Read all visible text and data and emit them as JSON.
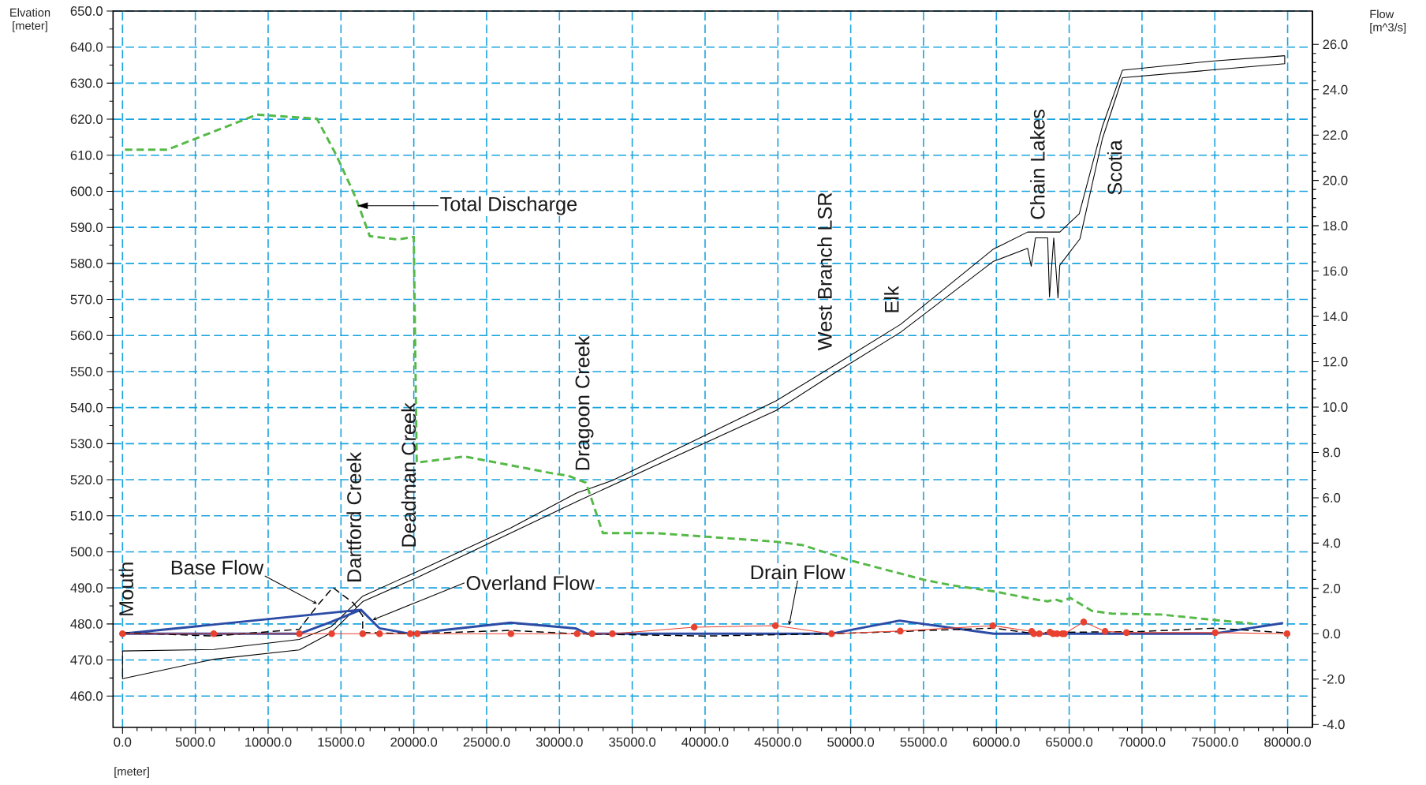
{
  "chart_data": {
    "type": "line",
    "xlabel": "[meter]",
    "ylabel": "Elvation [meter]",
    "y2label": "Flow [m^3/s]",
    "xlim": [
      -650,
      81700
    ],
    "ylim": [
      451.3,
      650
    ],
    "y2lim": [
      -4.13,
      27.47
    ],
    "grid": true,
    "xticks": [
      {
        "value": 0,
        "label": "0.0"
      },
      {
        "value": 5000,
        "label": "5000.0"
      },
      {
        "value": 10000,
        "label": "10000.0"
      },
      {
        "value": 15000,
        "label": "15000.0"
      },
      {
        "value": 20000,
        "label": "20000.0"
      },
      {
        "value": 25000,
        "label": "25000.0"
      },
      {
        "value": 30000,
        "label": "30000.0"
      },
      {
        "value": 35000,
        "label": "35000.0"
      },
      {
        "value": 40000,
        "label": "40000.0"
      },
      {
        "value": 45000,
        "label": "45000.0"
      },
      {
        "value": 50000,
        "label": "50000.0"
      },
      {
        "value": 55000,
        "label": "55000.0"
      },
      {
        "value": 60000,
        "label": "60000.0"
      },
      {
        "value": 65000,
        "label": "65000.0"
      },
      {
        "value": 70000,
        "label": "70000.0"
      },
      {
        "value": 75000,
        "label": "75000.0"
      },
      {
        "value": 80000,
        "label": "80000.0"
      }
    ],
    "yticks": [
      {
        "value": 460,
        "label": "460.0"
      },
      {
        "value": 470,
        "label": "470.0"
      },
      {
        "value": 480,
        "label": "480.0"
      },
      {
        "value": 490,
        "label": "490.0"
      },
      {
        "value": 500,
        "label": "500.0"
      },
      {
        "value": 510,
        "label": "510.0"
      },
      {
        "value": 520,
        "label": "520.0"
      },
      {
        "value": 530,
        "label": "530.0"
      },
      {
        "value": 540,
        "label": "540.0"
      },
      {
        "value": 550,
        "label": "550.0"
      },
      {
        "value": 560,
        "label": "560.0"
      },
      {
        "value": 570,
        "label": "570.0"
      },
      {
        "value": 580,
        "label": "580.0"
      },
      {
        "value": 590,
        "label": "590.0"
      },
      {
        "value": 600,
        "label": "600.0"
      },
      {
        "value": 610,
        "label": "610.0"
      },
      {
        "value": 620,
        "label": "620.0"
      },
      {
        "value": 630,
        "label": "630.0"
      },
      {
        "value": 640,
        "label": "640.0"
      },
      {
        "value": 650,
        "label": "650.0"
      }
    ],
    "y2ticks": [
      {
        "value": -4,
        "label": "-4.0"
      },
      {
        "value": -2,
        "label": "-2.0"
      },
      {
        "value": 0,
        "label": "0.0"
      },
      {
        "value": 2,
        "label": "2.0"
      },
      {
        "value": 4,
        "label": "4.0"
      },
      {
        "value": 6,
        "label": "6.0"
      },
      {
        "value": 8,
        "label": "8.0"
      },
      {
        "value": 10,
        "label": "10.0"
      },
      {
        "value": 12,
        "label": "12.0"
      },
      {
        "value": 14,
        "label": "14.0"
      },
      {
        "value": 16,
        "label": "16.0"
      },
      {
        "value": 18,
        "label": "18.0"
      },
      {
        "value": 20,
        "label": "20.0"
      },
      {
        "value": 22,
        "label": "22.0"
      },
      {
        "value": 24,
        "label": "24.0"
      },
      {
        "value": 26,
        "label": "26.0"
      }
    ],
    "annotations": [
      "Mouth",
      "Dartford Creek",
      "Deadman Creek",
      "Dragoon Creek",
      "West Branch LSR",
      "Elk",
      "Chain Lakes",
      "Scotia",
      "Total Discharge",
      "Base Flow",
      {
        "text": "Overland Flow",
        "x": 17170,
        "y": 481.1
      },
      "Drain Flow"
    ],
    "series": [
      {
        "color": "#000000",
        "x": [
          0,
          6262,
          12140,
          14313,
          16490,
          20000,
          26647,
          31218,
          32190,
          33635,
          44880,
          48706,
          53424,
          59768,
          62147,
          64357,
          65695,
          67282,
          68659,
          74789,
          79800
        ],
        "values": [
          472.5,
          472.9,
          475.7,
          479.2,
          487.7,
          494.1,
          506.6,
          516.4,
          517.7,
          519.8,
          541.9,
          551.3,
          563.1,
          583.9,
          588.7,
          588.7,
          593.8,
          618.0,
          633.6,
          636.1,
          637.6
        ]
      },
      {
        "color": "#000000",
        "x": [
          0,
          0,
          6262,
          12140,
          14313,
          16490,
          20238,
          31218,
          44880,
          48706,
          53424,
          59768,
          62145,
          62395,
          62688,
          63522,
          63647,
          63940,
          64232,
          64357,
          65738,
          67282,
          68659,
          79800,
          79800
        ],
        "values": [
          472.5,
          464.8,
          470.2,
          472.8,
          477.5,
          486.2,
          492.9,
          514.0,
          539.2,
          549.1,
          560.9,
          580.5,
          584.2,
          579.2,
          587.1,
          587.1,
          570.7,
          587.1,
          570.4,
          579.5,
          586.8,
          614.6,
          631.5,
          635.4,
          637.6
        ]
      },
      {
        "color": "#55b947",
        "axis": "y2",
        "line_style": "dashed",
        "x": [
          168,
          3066,
          9236,
          13348,
          14675,
          16007,
          16974,
          18911,
          20000,
          20200,
          23505,
          29500,
          30612,
          31826,
          32985,
          36658,
          44880,
          46695,
          49961,
          55037,
          57008,
          59946,
          62362,
          63516,
          64041,
          64459,
          65093,
          66561,
          67926,
          71284,
          74958,
          77585
        ],
        "values": [
          21.35,
          21.35,
          22.9,
          22.72,
          21.12,
          19.25,
          17.54,
          17.39,
          17.51,
          7.55,
          7.82,
          7.08,
          6.97,
          6.66,
          4.44,
          4.44,
          4.06,
          3.91,
          3.24,
          2.38,
          2.13,
          1.86,
          1.55,
          1.43,
          1.52,
          1.43,
          1.58,
          1.01,
          0.89,
          0.85,
          0.61,
          0.45
        ]
      },
      {
        "color": "#2b4ba5",
        "axis": "y2",
        "x": [
          16370,
          0,
          12140,
          14313,
          16370,
          17652,
          19750,
          26647,
          31101,
          31940,
          48630,
          53350,
          59828,
          74853,
          79687
        ],
        "values": [
          1.06,
          0,
          0,
          0.52,
          1.06,
          0.24,
          0,
          0.49,
          0.24,
          0,
          0,
          0.58,
          0,
          0,
          0.47
        ]
      },
      {
        "color": "#000000",
        "axis": "y2",
        "line_style": "dashed",
        "x": [
          0,
          6262,
          12140,
          13350,
          14437,
          15850,
          16490,
          16490,
          19800,
          26647,
          31200,
          40000,
          48700,
          53400,
          59800,
          62145,
          70000,
          75000,
          79700
        ],
        "values": [
          0.05,
          -0.1,
          0.2,
          1.22,
          2.04,
          1.36,
          0.8,
          0.06,
          0,
          0.15,
          0,
          -0.1,
          0,
          0.1,
          0.25,
          0.05,
          0.1,
          0.25,
          0.05
        ]
      },
      {
        "color": "#e8412f",
        "axis": "y2",
        "marker": "circle",
        "x": [
          0,
          6262,
          12140,
          14360,
          16490,
          17650,
          19760,
          20240,
          26670,
          31218,
          32240,
          33635,
          39250,
          44830,
          48680,
          53400,
          59760,
          62427,
          62574,
          62950,
          63685,
          63895,
          64168,
          64525,
          64672,
          65995,
          67465,
          68935,
          75024,
          79958
        ],
        "values": [
          0,
          0,
          0,
          0,
          0,
          0,
          0,
          0,
          0,
          0,
          0,
          0,
          0.29,
          0.36,
          0,
          0.12,
          0.36,
          0.11,
          0,
          0,
          0.07,
          0,
          0,
          0,
          0,
          0.52,
          0.11,
          0.05,
          0.05,
          0
        ]
      }
    ]
  }
}
